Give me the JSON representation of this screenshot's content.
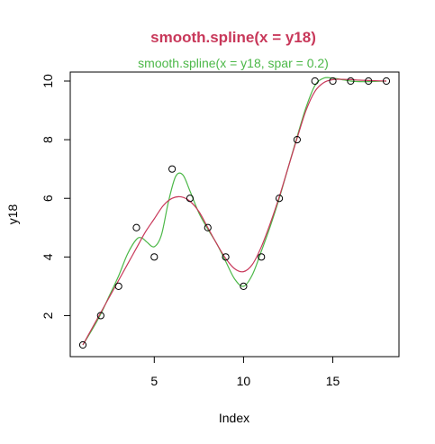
{
  "colors": {
    "main_title": "#C8385A",
    "fit_default": "#C8385A",
    "fit_spar": "#4CB848",
    "points": "#000000",
    "axis": "#000000"
  },
  "chart_data": {
    "type": "scatter",
    "title": "smooth.spline(x = y18)",
    "subtitle": "smooth.spline(x = y18, spar = 0.2)",
    "xlabel": "Index",
    "ylabel": "y18",
    "xlim": [
      1,
      18
    ],
    "ylim": [
      1,
      10
    ],
    "x_ticks": [
      5,
      10,
      15
    ],
    "y_ticks": [
      2,
      4,
      6,
      8,
      10
    ],
    "points": {
      "x": [
        1,
        2,
        3,
        4,
        5,
        6,
        7,
        8,
        9,
        10,
        11,
        12,
        13,
        14,
        15,
        16,
        17,
        18
      ],
      "y": [
        1,
        2,
        3,
        5,
        4,
        7,
        6,
        5,
        4,
        3,
        4,
        6,
        8,
        10,
        10,
        10,
        10,
        10
      ]
    },
    "series": [
      {
        "name": "smooth.spline(x = y18)",
        "color": "#C8385A",
        "x": [
          1,
          1.5,
          2,
          2.5,
          3,
          3.5,
          4,
          4.5,
          5,
          5.5,
          6,
          6.5,
          7,
          7.5,
          8,
          8.5,
          9,
          9.5,
          10,
          10.5,
          11,
          11.5,
          12,
          12.5,
          13,
          13.5,
          14,
          14.5,
          15,
          15.5,
          16,
          16.5,
          17,
          17.5,
          18
        ],
        "y": [
          1.0,
          1.55,
          2.1,
          2.65,
          3.2,
          3.75,
          4.3,
          4.85,
          5.3,
          5.75,
          6.0,
          6.05,
          5.9,
          5.55,
          5.0,
          4.45,
          3.95,
          3.6,
          3.5,
          3.75,
          4.35,
          5.15,
          6.05,
          7.05,
          8.05,
          9.0,
          9.65,
          9.95,
          10.05,
          10.06,
          10.05,
          10.03,
          10.02,
          10.01,
          10.0
        ]
      },
      {
        "name": "smooth.spline(x = y18, spar = 0.2)",
        "color": "#4CB848",
        "x": [
          1,
          1.5,
          2,
          2.5,
          3,
          3.5,
          4,
          4.3,
          4.6,
          5,
          5.4,
          5.8,
          6.2,
          6.6,
          7,
          7.5,
          8,
          8.5,
          9,
          9.5,
          10,
          10.5,
          11,
          11.5,
          12,
          12.5,
          13,
          13.5,
          14,
          14.5,
          15,
          15.5,
          16,
          16.5,
          17,
          17.5,
          18
        ],
        "y": [
          1.0,
          1.5,
          2.05,
          2.7,
          3.35,
          4.1,
          4.6,
          4.65,
          4.5,
          4.35,
          4.75,
          5.9,
          6.75,
          6.8,
          6.25,
          5.5,
          4.95,
          4.45,
          3.85,
          3.25,
          3.0,
          3.4,
          4.2,
          5.05,
          6.0,
          7.05,
          8.1,
          9.1,
          9.85,
          10.1,
          10.1,
          10.05,
          10.0,
          9.98,
          9.98,
          9.99,
          10.0
        ]
      }
    ],
    "grid": false,
    "legend": "none"
  }
}
